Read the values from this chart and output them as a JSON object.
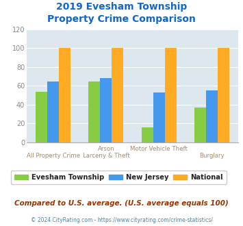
{
  "title_line1": "2019 Evesham Township",
  "title_line2": "Property Crime Comparison",
  "cat_labels_top": [
    "",
    "Arson",
    "Motor Vehicle Theft",
    ""
  ],
  "cat_labels_bot": [
    "All Property Crime",
    "Larceny & Theft",
    "",
    "Burglary"
  ],
  "evesham": [
    54,
    65,
    16,
    37
  ],
  "nj": [
    65,
    68,
    53,
    55
  ],
  "national": [
    100,
    100,
    100,
    100
  ],
  "color_evesham": "#88cc44",
  "color_nj": "#4499ee",
  "color_national": "#ffaa22",
  "ylim": [
    0,
    120
  ],
  "yticks": [
    0,
    20,
    40,
    60,
    80,
    100,
    120
  ],
  "bg_color": "#dce8ee",
  "title_color": "#1166cc",
  "footer_text": "Compared to U.S. average. (U.S. average equals 100)",
  "copyright_text": "© 2024 CityRating.com - https://www.cityrating.com/crime-statistics/",
  "legend_labels": [
    "Evesham Township",
    "New Jersey",
    "National"
  ],
  "bar_width": 0.22
}
